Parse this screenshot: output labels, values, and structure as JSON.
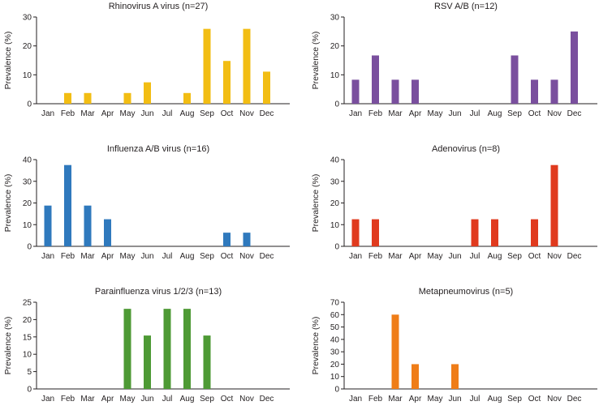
{
  "chart_data": [
    {
      "type": "bar",
      "title": "Rhinovirus A virus (n=27)",
      "ylabel": "Prevalence (%)",
      "categories": [
        "Jan",
        "Feb",
        "Mar",
        "Apr",
        "May",
        "Jun",
        "Jul",
        "Aug",
        "Sep",
        "Oct",
        "Nov",
        "Dec"
      ],
      "values": [
        0,
        3.7,
        3.7,
        0,
        3.7,
        7.4,
        0,
        3.7,
        25.9,
        14.8,
        25.9,
        11.1
      ],
      "ylim": [
        0,
        30
      ],
      "yticks": [
        0,
        10,
        20,
        30
      ],
      "color": "#f2bd13"
    },
    {
      "type": "bar",
      "title": "RSV A/B (n=12)",
      "ylabel": "Prevalence (%)",
      "categories": [
        "Jan",
        "Feb",
        "Mar",
        "Apr",
        "May",
        "Jun",
        "Jul",
        "Aug",
        "Sep",
        "Oct",
        "Nov",
        "Dec"
      ],
      "values": [
        8.3,
        16.7,
        8.3,
        8.3,
        0,
        0,
        0,
        0,
        16.7,
        8.3,
        8.3,
        25.0
      ],
      "ylim": [
        0,
        30
      ],
      "yticks": [
        0,
        10,
        20,
        30
      ],
      "color": "#7a4f9e"
    },
    {
      "type": "bar",
      "title": "Influenza A/B virus (n=16)",
      "ylabel": "Prevalence (%)",
      "categories": [
        "Jan",
        "Feb",
        "Mar",
        "Apr",
        "May",
        "Jun",
        "Jul",
        "Aug",
        "Sep",
        "Oct",
        "Nov",
        "Dec"
      ],
      "values": [
        18.8,
        37.5,
        18.8,
        12.5,
        0,
        0,
        0,
        0,
        0,
        6.3,
        6.3,
        0
      ],
      "ylim": [
        0,
        40
      ],
      "yticks": [
        0,
        10,
        20,
        30,
        40
      ],
      "color": "#2f79bd"
    },
    {
      "type": "bar",
      "title": "Adenovirus (n=8)",
      "ylabel": "Prevalence (%)",
      "categories": [
        "Jan",
        "Feb",
        "Mar",
        "Apr",
        "May",
        "Jun",
        "Jul",
        "Aug",
        "Sep",
        "Oct",
        "Nov",
        "Dec"
      ],
      "values": [
        12.5,
        12.5,
        0,
        0,
        0,
        0,
        12.5,
        12.5,
        0,
        12.5,
        37.5,
        0
      ],
      "ylim": [
        0,
        40
      ],
      "yticks": [
        0,
        10,
        20,
        30,
        40
      ],
      "color": "#e03a1e"
    },
    {
      "type": "bar",
      "title": "Parainfluenza virus 1/2/3 (n=13)",
      "ylabel": "Prevalence (%)",
      "categories": [
        "Jan",
        "Feb",
        "Mar",
        "Apr",
        "May",
        "Jun",
        "Jul",
        "Aug",
        "Sep",
        "Oct",
        "Nov",
        "Dec"
      ],
      "values": [
        0,
        0,
        0,
        0,
        23.1,
        15.4,
        23.1,
        23.1,
        15.4,
        0,
        0,
        0
      ],
      "ylim": [
        0,
        25
      ],
      "yticks": [
        0,
        5,
        10,
        15,
        20,
        25
      ],
      "color": "#4e9a35"
    },
    {
      "type": "bar",
      "title": "Metapneumovirus (n=5)",
      "ylabel": "Prevalence (%)",
      "categories": [
        "Jan",
        "Feb",
        "Mar",
        "Apr",
        "May",
        "Jun",
        "Jul",
        "Aug",
        "Sep",
        "Oct",
        "Nov",
        "Dec"
      ],
      "values": [
        0,
        0,
        60,
        20,
        0,
        20,
        0,
        0,
        0,
        0,
        0,
        0
      ],
      "ylim": [
        0,
        70
      ],
      "yticks": [
        0,
        10,
        20,
        30,
        40,
        50,
        60,
        70
      ],
      "color": "#ef7d18"
    }
  ]
}
